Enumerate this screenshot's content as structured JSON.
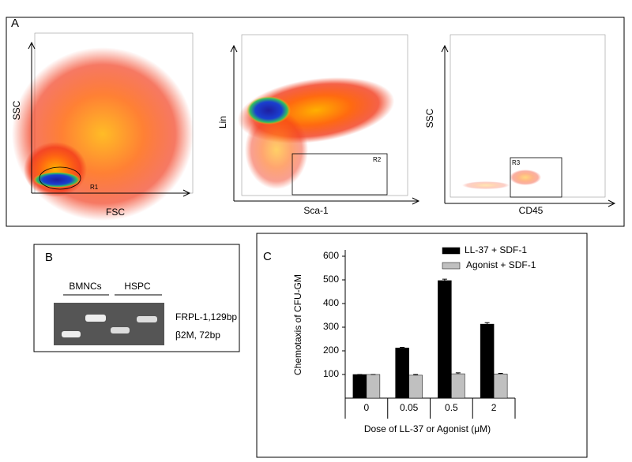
{
  "panel_labels": [
    "A",
    "B",
    "C"
  ],
  "flow_plots": [
    {
      "y_label": "SSC",
      "x_label": "FSC",
      "gate": "R1"
    },
    {
      "y_label": "Lin",
      "x_label": "Sca-1",
      "gate": "R2"
    },
    {
      "y_label": "SSC",
      "x_label": "CD45",
      "gate": "R3"
    }
  ],
  "gel": {
    "lanes": [
      "BMNCs",
      "HSPC"
    ],
    "bands": [
      "FRPL-1,129bp",
      "β2M, 72bp"
    ]
  },
  "chart_data": {
    "type": "bar",
    "y_label": "Chemotaxis of  CFU-GM",
    "x_label": "Dose of LL-37 or Agonist (μM)",
    "categories": [
      "0",
      "0.05",
      "0.5",
      "2"
    ],
    "series": [
      {
        "name": "LL-37 + SDF-1",
        "color": "#000000",
        "values": [
          100,
          212,
          497,
          313
        ],
        "errors": [
          0,
          3,
          6,
          6
        ]
      },
      {
        "name": "Agonist + SDF-1",
        "color": "#c0c0c0",
        "values": [
          100,
          97,
          103,
          102
        ],
        "errors": [
          0,
          3,
          4,
          3
        ]
      }
    ],
    "ylim": [
      0,
      600
    ],
    "yticks": [
      100,
      200,
      300,
      400,
      500,
      600
    ]
  }
}
